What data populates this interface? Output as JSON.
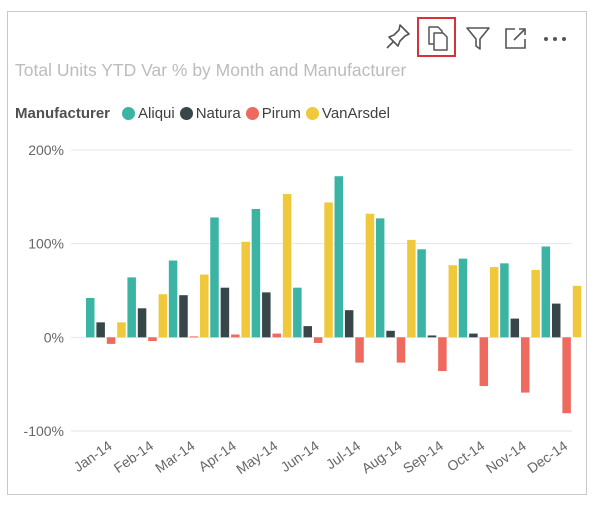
{
  "toolbar": {
    "icons": [
      {
        "name": "pin-icon"
      },
      {
        "name": "copy-visual-icon",
        "highlighted": true
      },
      {
        "name": "filter-icon"
      },
      {
        "name": "focus-mode-icon"
      },
      {
        "name": "more-options-icon"
      }
    ],
    "highlight_color": "#d6323a"
  },
  "visual": {
    "title": "Total Units YTD Var % by Month and Manufacturer"
  },
  "legend": {
    "title": "Manufacturer",
    "items": [
      {
        "label": "Aliqui",
        "color": "#3bb4a4"
      },
      {
        "label": "Natura",
        "color": "#374649"
      },
      {
        "label": "Pirum",
        "color": "#ef6a5e"
      },
      {
        "label": "VanArsdel",
        "color": "#f0c83b"
      }
    ]
  },
  "chart_data": {
    "type": "bar",
    "title": "Total Units YTD Var % by Month and Manufacturer",
    "categories": [
      "Jan-14",
      "Feb-14",
      "Mar-14",
      "Apr-14",
      "May-14",
      "Jun-14",
      "Jul-14",
      "Aug-14",
      "Sep-14",
      "Oct-14",
      "Nov-14",
      "Dec-14"
    ],
    "series": [
      {
        "name": "Aliqui",
        "color": "#3bb4a4",
        "values": [
          42,
          64,
          82,
          128,
          137,
          53,
          172,
          127,
          94,
          84,
          79,
          97
        ]
      },
      {
        "name": "Natura",
        "color": "#374649",
        "values": [
          16,
          31,
          45,
          53,
          48,
          12,
          29,
          7,
          2,
          4,
          20,
          36
        ]
      },
      {
        "name": "Pirum",
        "color": "#ef6a5e",
        "values": [
          -7,
          -4,
          1,
          3,
          4,
          -6,
          -27,
          -27,
          -36,
          -52,
          -59,
          -81
        ]
      },
      {
        "name": "VanArsdel",
        "color": "#f0c83b",
        "values": [
          16,
          46,
          67,
          102,
          153,
          144,
          132,
          104,
          77,
          75,
          72,
          55
        ]
      }
    ],
    "yticks": [
      -100,
      0,
      100,
      200
    ],
    "ytick_labels": [
      "-100%",
      "0%",
      "100%",
      "200%"
    ],
    "ylim": [
      -100,
      200
    ],
    "grid": true,
    "legend_position": "top-left"
  }
}
